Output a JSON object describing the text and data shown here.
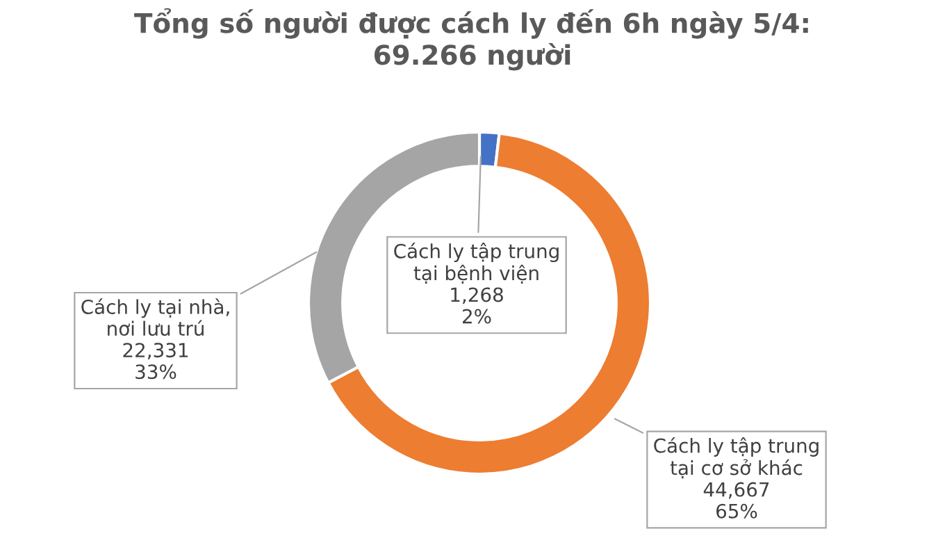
{
  "chart_data": {
    "type": "donut",
    "title": "Tổng số người được cách ly đến 6h ngày 5/4:\n69.266 người",
    "categories": [
      "Cách ly tập trung\ntại bệnh viện",
      "Cách ly tập trung\ntại cơ sở khác",
      "Cách ly tại nhà,\nnơi lưu trú"
    ],
    "values": [
      1268,
      44667,
      22331
    ],
    "colors": [
      "#4472c4",
      "#ed7d31",
      "#a5a5a5"
    ],
    "value_labels": [
      "1,268\n2%",
      "44,667\n65%",
      "22,331\n33%"
    ],
    "legend": false
  }
}
